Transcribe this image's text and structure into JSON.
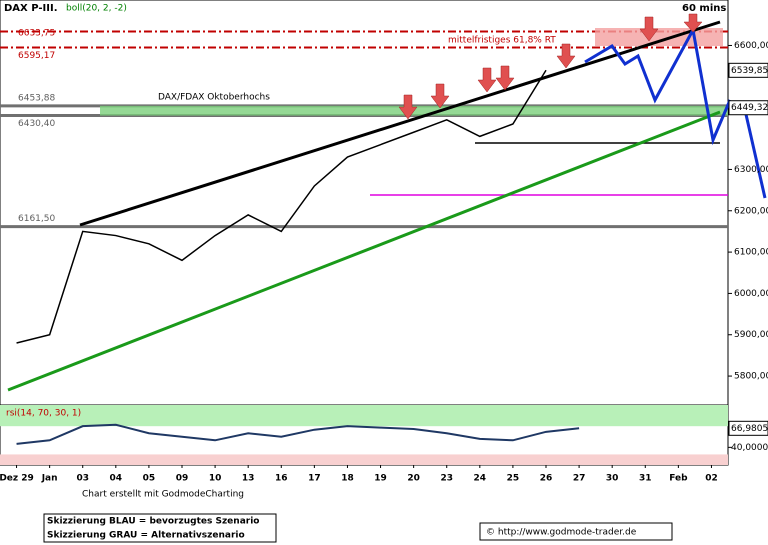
{
  "chart_data": {
    "type": "line",
    "title": "DAX P-III.",
    "indicator": "boll(20, 2, -2)",
    "timeframe": "60 mins",
    "categories": [
      "Dez 29",
      "Jan",
      "03",
      "04",
      "05",
      "09",
      "10",
      "13",
      "16",
      "17",
      "18",
      "19",
      "20",
      "23",
      "24",
      "25",
      "26",
      "27",
      "30",
      "31",
      "Feb",
      "02"
    ],
    "values": [
      5880,
      5900,
      6150,
      6140,
      6120,
      6080,
      6140,
      6190,
      6150,
      6260,
      6330,
      6360,
      6390,
      6420,
      6380,
      6410,
      6540,
      null,
      null,
      null,
      null,
      null
    ],
    "color": "#000000",
    "ylim": [
      5730,
      6710
    ],
    "yticks": [
      {
        "value": 5800,
        "label": "5800,00"
      },
      {
        "value": 5900,
        "label": "5900,00"
      },
      {
        "value": 6000,
        "label": "6000,00"
      },
      {
        "value": 6100,
        "label": "6100,00"
      },
      {
        "value": 6200,
        "label": "6200,00"
      },
      {
        "value": 6300,
        "label": "6300,00"
      },
      {
        "value": 6600,
        "label": "6600,00"
      }
    ],
    "price_markers": [
      {
        "value": 6539.85,
        "label": "6539,85"
      },
      {
        "value": 6449.32,
        "label": "6449,32"
      }
    ],
    "levels": [
      {
        "value": 6633.75,
        "label": "6633,75",
        "color": "#c00000"
      },
      {
        "value": 6595.17,
        "label": "6595,17",
        "color": "#c00000"
      },
      {
        "value": 6453.88,
        "label": "6453,88",
        "color": "#606060"
      },
      {
        "value": 6430.4,
        "label": "6430,40",
        "color": "#606060"
      },
      {
        "value": 6161.5,
        "label": "6161,50",
        "color": "#606060"
      }
    ],
    "annotations": [
      "mittelfristiges 61,8% RT",
      "DAX/FDAX Oktoberhochs"
    ],
    "rsi": {
      "title": "rsi(14, 70, 30, 1)",
      "values": [
        45,
        50,
        70,
        72,
        60,
        55,
        50,
        60,
        55,
        65,
        70,
        68,
        66,
        60,
        52,
        50,
        62,
        67,
        null,
        null,
        null,
        null
      ],
      "color": "#1f3864",
      "ylim": [
        15,
        100
      ],
      "yticks": [
        {
          "value": 66.9805,
          "label": "66,9805"
        },
        {
          "value": 40,
          "label": "40,0000"
        }
      ]
    },
    "footer": {
      "credit": "Chart erstellt mit GodmodeCharting",
      "legend": [
        "Skizzierung BLAU = bevorzugtes Szenario",
        "Skizzierung GRAU = Alternativszenario"
      ],
      "copyright": "© http://www.godmode-trader.de"
    }
  }
}
